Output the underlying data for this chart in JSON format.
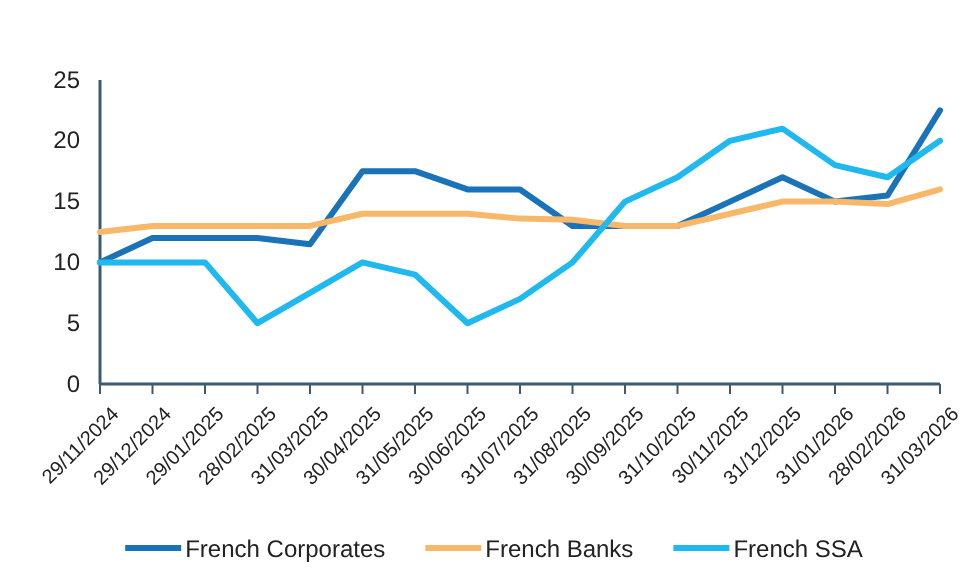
{
  "chart_data": {
    "type": "line",
    "categories": [
      "29/11/2024",
      "29/12/2024",
      "29/01/2025",
      "28/02/2025",
      "31/03/2025",
      "30/04/2025",
      "31/05/2025",
      "30/06/2025",
      "31/07/2025",
      "31/08/2025",
      "30/09/2025",
      "31/10/2025",
      "30/11/2025",
      "31/12/2025",
      "31/01/2026",
      "28/02/2026",
      "31/03/2026"
    ],
    "series": [
      {
        "name": "French Corporates",
        "color": "#1a72b8",
        "values": [
          10,
          12,
          12,
          12,
          11.5,
          17.5,
          17.5,
          16,
          16,
          13,
          13,
          13,
          15,
          17,
          15,
          15.5,
          22.5
        ]
      },
      {
        "name": "French Banks",
        "color": "#f8b86a",
        "values": [
          12.5,
          13,
          13,
          13,
          13,
          14,
          14,
          14,
          13.6,
          13.5,
          13,
          13,
          14,
          15,
          15,
          14.8,
          16
        ]
      },
      {
        "name": "French SSA",
        "color": "#1fb8ef",
        "values": [
          10,
          10,
          10,
          5,
          7.5,
          10,
          9,
          5,
          7,
          10,
          15,
          17,
          20,
          21,
          18,
          17,
          20
        ]
      }
    ],
    "ylim": [
      0,
      25
    ],
    "yticks": [
      0,
      5,
      10,
      15,
      20,
      25
    ],
    "grid": false,
    "legend": "bottom",
    "marker": "none",
    "line_style": "solid"
  }
}
